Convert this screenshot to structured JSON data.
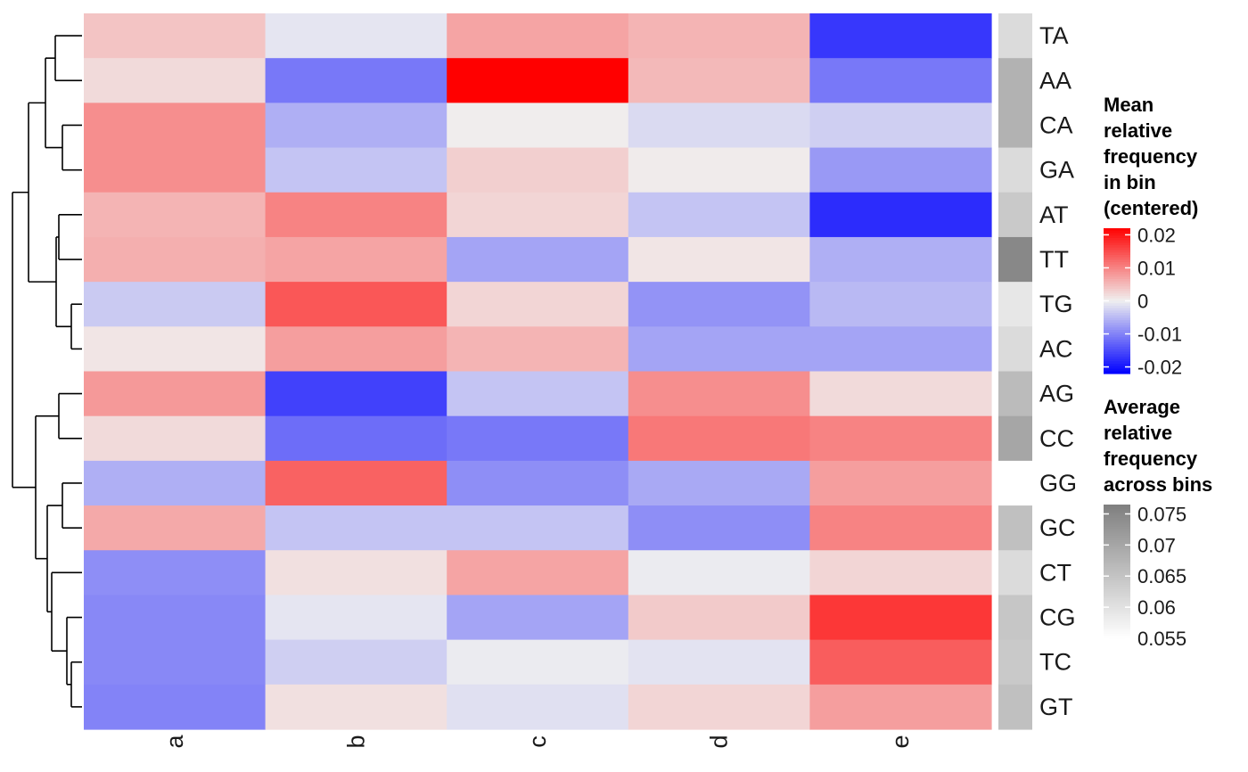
{
  "chart_data": {
    "type": "heatmap",
    "columns": [
      "a",
      "b",
      "c",
      "d",
      "e"
    ],
    "rows": [
      "TA",
      "AA",
      "CA",
      "GA",
      "AT",
      "TT",
      "TG",
      "AC",
      "AG",
      "CC",
      "GG",
      "GC",
      "CT",
      "CG",
      "TC",
      "GT"
    ],
    "values": [
      [
        0.004,
        -0.001,
        0.007,
        0.0055,
        -0.017
      ],
      [
        0.002,
        -0.011,
        0.022,
        0.005,
        -0.011
      ],
      [
        0.009,
        -0.006,
        0.0003,
        -0.002,
        -0.003
      ],
      [
        0.009,
        -0.004,
        0.003,
        0.0005,
        -0.008
      ],
      [
        0.0055,
        0.01,
        0.0025,
        -0.004,
        -0.018
      ],
      [
        0.006,
        0.007,
        -0.007,
        0.001,
        -0.006
      ],
      [
        -0.0035,
        0.014,
        0.0025,
        -0.0085,
        -0.005
      ],
      [
        0.001,
        0.0075,
        0.0055,
        -0.007,
        -0.007
      ],
      [
        0.008,
        -0.016,
        -0.004,
        0.009,
        0.002
      ],
      [
        0.002,
        -0.012,
        -0.011,
        0.011,
        0.01
      ],
      [
        -0.006,
        0.013,
        -0.009,
        -0.0065,
        0.0075
      ],
      [
        0.0065,
        -0.004,
        -0.004,
        -0.009,
        0.01
      ],
      [
        -0.009,
        0.0015,
        0.007,
        -0.0005,
        0.0025
      ],
      [
        -0.0095,
        -0.001,
        -0.007,
        0.0035,
        0.017
      ],
      [
        -0.0095,
        -0.003,
        -0.0005,
        -0.0012,
        0.0135
      ],
      [
        -0.01,
        0.0015,
        -0.0015,
        0.0025,
        0.0075
      ]
    ],
    "row_annotation": [
      0.061,
      0.068,
      0.068,
      0.061,
      0.064,
      0.075,
      0.059,
      0.061,
      0.0665,
      0.07,
      0.055,
      0.0655,
      0.061,
      0.0645,
      0.064,
      0.0655
    ],
    "legend_main": {
      "title": [
        "Mean",
        "relative",
        "frequency",
        "in bin",
        "(centered)"
      ],
      "ticks": [
        0.02,
        0.01,
        0,
        -0.01,
        -0.02
      ],
      "tick_labels": [
        "0.02",
        "0.01",
        "0",
        "-0.01",
        "-0.02"
      ],
      "range": [
        -0.022,
        0.022
      ],
      "colors": {
        "low": "#0000ff",
        "mid": "#f0f0f0",
        "high": "#ff0000"
      }
    },
    "legend_annotation": {
      "title": [
        "Average",
        "relative",
        "frequency",
        "across bins"
      ],
      "ticks": [
        0.075,
        0.07,
        0.065,
        0.06,
        0.055
      ],
      "tick_labels": [
        "0.075",
        "0.07",
        "0.065",
        "0.06",
        "0.055"
      ],
      "range": [
        0.055,
        0.0765
      ],
      "colors": {
        "low": "#ffffff",
        "high": "#7f7f7f"
      }
    },
    "dendrogram": "row clustering, drawn at left",
    "legend_position": "right"
  }
}
